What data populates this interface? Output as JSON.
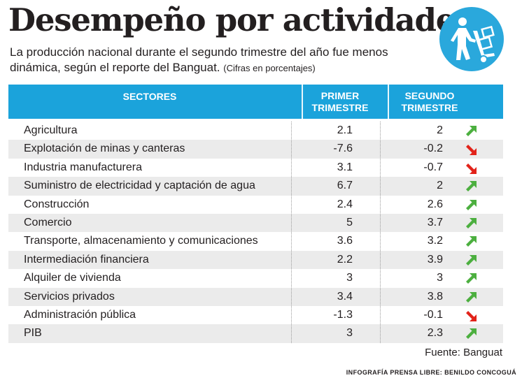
{
  "title": "Desempeño por actividades",
  "subtitle": "La producción nacional durante el segundo trimestre del año fue menos dinámica, según el reporte del Banguat.",
  "note": "(Cifras en porcentajes)",
  "badge_icon": "hand-truck-icon",
  "colors": {
    "header": "#1ba3db",
    "badge": "#2aa8dc",
    "up": "#4caf3f",
    "down": "#e2231a",
    "shade": "#ebebeb"
  },
  "chart_data": {
    "type": "table",
    "columns": [
      "SECTORES",
      "PRIMER TRIMESTRE",
      "SEGUNDO TRIMESTRE"
    ],
    "rows": [
      {
        "sector": "Agricultura",
        "q1": "2.1",
        "q2": "2",
        "trend": "up"
      },
      {
        "sector": "Explotación de minas y canteras",
        "q1": "-7.6",
        "q2": "-0.2",
        "trend": "down"
      },
      {
        "sector": "Industria manufacturera",
        "q1": "3.1",
        "q2": "-0.7",
        "trend": "down"
      },
      {
        "sector": "Suministro de electricidad y captación de agua",
        "q1": "6.7",
        "q2": "2",
        "trend": "up"
      },
      {
        "sector": "Construcción",
        "q1": "2.4",
        "q2": "2.6",
        "trend": "up"
      },
      {
        "sector": "Comercio",
        "q1": "5",
        "q2": "3.7",
        "trend": "up"
      },
      {
        "sector": "Transporte, almacenamiento y comunicaciones",
        "q1": "3.6",
        "q2": "3.2",
        "trend": "up"
      },
      {
        "sector": "Intermediación financiera",
        "q1": "2.2",
        "q2": "3.9",
        "trend": "up"
      },
      {
        "sector": "Alquiler de vivienda",
        "q1": "3",
        "q2": "3",
        "trend": "up"
      },
      {
        "sector": "Servicios privados",
        "q1": "3.4",
        "q2": "3.8",
        "trend": "up"
      },
      {
        "sector": "Administración pública",
        "q1": "-1.3",
        "q2": "-0.1",
        "trend": "down"
      },
      {
        "sector": "PIB",
        "q1": "3",
        "q2": "2.3",
        "trend": "up"
      }
    ]
  },
  "header": {
    "sectores": "SECTORES",
    "q1_line1": "PRIMER",
    "q1_line2": "TRIMESTRE",
    "q2_line1": "SEGUNDO",
    "q2_line2": "TRIMESTRE"
  },
  "source": "Fuente: Banguat",
  "credit": "INFOGRAFÍA PRENSA LIBRE: BENILDO CONCOGUÁ"
}
